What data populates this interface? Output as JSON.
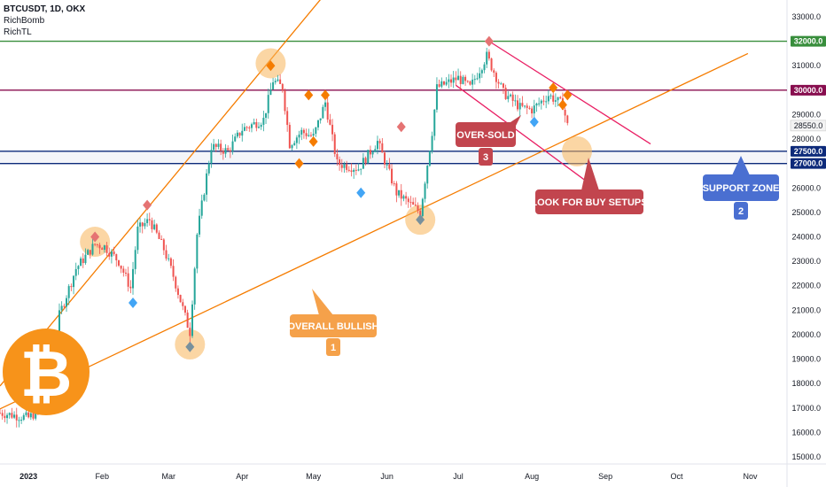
{
  "header": {
    "symbol_line": "BTCUSDT, 1D, OKX",
    "indicators": [
      "RichBomb",
      "RichTL"
    ]
  },
  "chart_data": {
    "type": "candlestick",
    "symbol": "BTCUSDT",
    "interval": "1D",
    "exchange": "OKX",
    "ylim": [
      15000,
      33500
    ],
    "y_ticks": [
      15000,
      16000,
      17000,
      18000,
      19000,
      20000,
      21000,
      22000,
      23000,
      24000,
      25000,
      26000,
      27000,
      28000,
      29000,
      30000,
      31000,
      32000,
      33000
    ],
    "y_tick_labels": [
      "15000.0",
      "16000.0",
      "17000.0",
      "18000.0",
      "19000.0",
      "20000.0",
      "21000.0",
      "22000.0",
      "23000.0",
      "24000.0",
      "25000.0",
      "26000.0",
      "27000.0",
      "28000.0",
      "29000.0",
      "30000.0",
      "31000.0",
      "32000.0",
      "33000.0"
    ],
    "x_ticks": [
      {
        "label": "2023",
        "date": "2023-01-01"
      },
      {
        "label": "Feb",
        "date": "2023-02-01"
      },
      {
        "label": "Mar",
        "date": "2023-03-01"
      },
      {
        "label": "Apr",
        "date": "2023-04-01"
      },
      {
        "label": "May",
        "date": "2023-05-01"
      },
      {
        "label": "Jun",
        "date": "2023-06-01"
      },
      {
        "label": "Jul",
        "date": "2023-07-01"
      },
      {
        "label": "Aug",
        "date": "2023-08-01"
      },
      {
        "label": "Sep",
        "date": "2023-09-01"
      },
      {
        "label": "Oct",
        "date": "2023-10-01"
      },
      {
        "label": "Nov",
        "date": "2023-11-01"
      }
    ],
    "price_path": [
      [
        "2022-12-20",
        16800
      ],
      [
        "2023-01-01",
        16600
      ],
      [
        "2023-01-08",
        17100
      ],
      [
        "2023-01-12",
        18200
      ],
      [
        "2023-01-14",
        20800
      ],
      [
        "2023-01-21",
        22700
      ],
      [
        "2023-01-29",
        23700
      ],
      [
        "2023-02-02",
        23600
      ],
      [
        "2023-02-08",
        23000
      ],
      [
        "2023-02-13",
        21900
      ],
      [
        "2023-02-16",
        24300
      ],
      [
        "2023-02-21",
        24700
      ],
      [
        "2023-02-27",
        23500
      ],
      [
        "2023-03-03",
        22400
      ],
      [
        "2023-03-09",
        20400
      ],
      [
        "2023-03-10",
        20100
      ],
      [
        "2023-03-13",
        24100
      ],
      [
        "2023-03-19",
        27700
      ],
      [
        "2023-03-26",
        27500
      ],
      [
        "2023-04-01",
        28400
      ],
      [
        "2023-04-10",
        28800
      ],
      [
        "2023-04-14",
        30400
      ],
      [
        "2023-04-18",
        30100
      ],
      [
        "2023-04-21",
        27800
      ],
      [
        "2023-04-26",
        28300
      ],
      [
        "2023-05-01",
        28100
      ],
      [
        "2023-05-06",
        29500
      ],
      [
        "2023-05-11",
        27000
      ],
      [
        "2023-05-20",
        26800
      ],
      [
        "2023-05-28",
        27900
      ],
      [
        "2023-06-05",
        25800
      ],
      [
        "2023-06-15",
        25000
      ],
      [
        "2023-06-20",
        28300
      ],
      [
        "2023-06-22",
        30100
      ],
      [
        "2023-07-01",
        30500
      ],
      [
        "2023-07-06",
        30100
      ],
      [
        "2023-07-13",
        31400
      ],
      [
        "2023-07-20",
        29900
      ],
      [
        "2023-07-27",
        29300
      ],
      [
        "2023-08-01",
        29200
      ],
      [
        "2023-08-08",
        29800
      ],
      [
        "2023-08-14",
        29400
      ],
      [
        "2023-08-16",
        28550
      ]
    ],
    "horizontal_levels": [
      {
        "price": 32000,
        "color": "#388e3c",
        "label": "32000.0"
      },
      {
        "price": 30000,
        "color": "#880e4f",
        "label": "30000.0"
      },
      {
        "price": 27500,
        "color": "#0d2a7a",
        "label": "27500.0"
      },
      {
        "price": 27000,
        "color": "#0d2a7a",
        "label": "27000.0"
      }
    ],
    "current_price": {
      "price": 28550,
      "label": "28550.0",
      "color": "#d32f2f"
    },
    "trendlines": [
      {
        "name": "lower-channel",
        "color": "#f57c00",
        "from": [
          "2022-12-10",
          16500
        ],
        "to": [
          "2023-10-31",
          31500
        ]
      },
      {
        "name": "upper-channel",
        "color": "#f57c00",
        "from": [
          "2022-12-20",
          17900
        ],
        "to": [
          "2023-05-15",
          35000
        ]
      },
      {
        "name": "falling-upper",
        "color": "#e91e63",
        "from": [
          "2023-07-14",
          32000
        ],
        "to": [
          "2023-09-20",
          27800
        ]
      },
      {
        "name": "falling-lower",
        "color": "#e91e63",
        "from": [
          "2023-06-30",
          30200
        ],
        "to": [
          "2023-09-01",
          25700
        ]
      }
    ],
    "highlight_circles": [
      {
        "date": "2023-01-29",
        "price": 23800
      },
      {
        "date": "2023-03-10",
        "price": 19600
      },
      {
        "date": "2023-04-13",
        "price": 31100
      },
      {
        "date": "2023-06-15",
        "price": 24700
      },
      {
        "date": "2023-08-20",
        "price": 27500
      }
    ],
    "signals": [
      {
        "date": "2023-01-29",
        "price": 24000,
        "color": "#e57373"
      },
      {
        "date": "2023-02-14",
        "price": 21300,
        "color": "#42a5f5"
      },
      {
        "date": "2023-02-20",
        "price": 25300,
        "color": "#e57373"
      },
      {
        "date": "2023-03-10",
        "price": 19500,
        "color": "#78909c"
      },
      {
        "date": "2023-04-13",
        "price": 31000,
        "color": "#f57c00"
      },
      {
        "date": "2023-04-25",
        "price": 27000,
        "color": "#f57c00"
      },
      {
        "date": "2023-04-29",
        "price": 29800,
        "color": "#f57c00"
      },
      {
        "date": "2023-05-01",
        "price": 27900,
        "color": "#f57c00"
      },
      {
        "date": "2023-05-06",
        "price": 29800,
        "color": "#f57c00"
      },
      {
        "date": "2023-05-21",
        "price": 25800,
        "color": "#42a5f5"
      },
      {
        "date": "2023-06-07",
        "price": 28500,
        "color": "#e57373"
      },
      {
        "date": "2023-06-15",
        "price": 24700,
        "color": "#78909c"
      },
      {
        "date": "2023-07-14",
        "price": 32000,
        "color": "#e57373"
      },
      {
        "date": "2023-08-02",
        "price": 28700,
        "color": "#42a5f5"
      },
      {
        "date": "2023-08-10",
        "price": 30100,
        "color": "#f57c00"
      },
      {
        "date": "2023-08-14",
        "price": 29400,
        "color": "#f57c00"
      },
      {
        "date": "2023-08-16",
        "price": 29800,
        "color": "#f57c00"
      }
    ],
    "callouts": [
      {
        "text": "OVERALL BULLISH",
        "number": "1",
        "color": "#f5a14a",
        "text_color": "#ffffff"
      },
      {
        "text": "SUPPORT ZONE",
        "number": "2",
        "color": "#4a6fd1",
        "text_color": "#ffffff"
      },
      {
        "text": "OVER-SOLD",
        "number": "3",
        "color": "#c2454e",
        "text_color": "#ffffff"
      },
      {
        "text": "LOOK FOR BUY SETUPS",
        "number": "",
        "color": "#c2454e",
        "text_color": "#ffffff"
      }
    ],
    "logo": {
      "symbol": "₿",
      "color": "#f7931a"
    }
  }
}
